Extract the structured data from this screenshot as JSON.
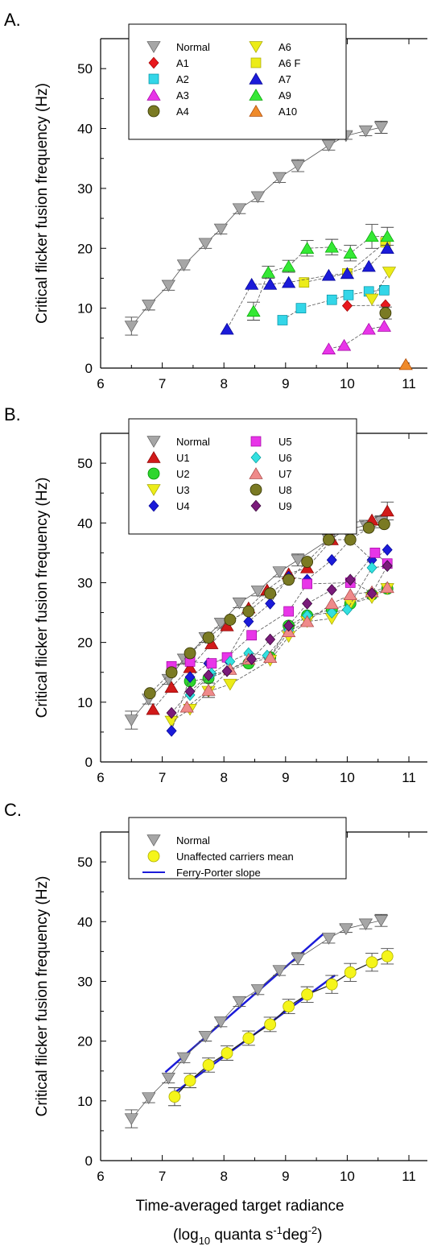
{
  "panel_labels": [
    "A.",
    "B.",
    "C."
  ],
  "chart_data": [
    {
      "type": "scatter",
      "panel": "A.",
      "ylabel": "Critical flicker fusion frequency (Hz)",
      "xlabel": "",
      "xlim": [
        6,
        11.3
      ],
      "ylim": [
        0,
        55
      ],
      "xticks": [
        6,
        7,
        8,
        9,
        10,
        11
      ],
      "yticks": [
        0,
        10,
        20,
        30,
        40,
        50
      ],
      "legend_position": "top-left",
      "series": [
        {
          "name": "Normal",
          "marker": "tri-down",
          "color": "#a6a6a6",
          "x": [
            6.5,
            6.78,
            7.1,
            7.35,
            7.7,
            7.95,
            8.25,
            8.55,
            8.9,
            9.2,
            9.7,
            9.98,
            10.3,
            10.55
          ],
          "y": [
            7,
            10.5,
            13.8,
            17.2,
            20.8,
            23.2,
            26.6,
            28.6,
            31.8,
            33.8,
            37.2,
            38.8,
            39.6,
            40.2
          ],
          "err": [
            1.5,
            0.8,
            0.8,
            0.8,
            0.8,
            0.8,
            0.8,
            0.8,
            0.8,
            1,
            0.8,
            0.6,
            0.8,
            1
          ]
        },
        {
          "name": "A1",
          "marker": "diamond",
          "color": "#e8181d",
          "x": [
            10,
            10.62
          ],
          "y": [
            10.4,
            10.5
          ],
          "err": [
            0,
            0
          ]
        },
        {
          "name": "A2",
          "marker": "square",
          "color": "#33d6e8",
          "x": [
            8.95,
            9.25,
            9.75,
            10.02,
            10.35,
            10.6
          ],
          "y": [
            8,
            10,
            11.4,
            12.2,
            12.8,
            13
          ],
          "err": [
            0,
            0,
            0,
            0,
            0,
            0
          ]
        },
        {
          "name": "A3",
          "marker": "tri-up",
          "color": "#e835e8",
          "x": [
            9.7,
            9.95,
            10.35,
            10.6
          ],
          "y": [
            3.2,
            3.8,
            6.5,
            7
          ],
          "err": [
            0,
            0,
            0,
            0
          ]
        },
        {
          "name": "A4",
          "marker": "circle",
          "color": "#7a7a23",
          "x": [
            10.62
          ],
          "y": [
            9.2
          ],
          "err": [
            1
          ]
        },
        {
          "name": "A6",
          "marker": "tri-down",
          "color": "#ecec18",
          "x": [
            10.4,
            10.68
          ],
          "y": [
            11.5,
            16
          ],
          "err": [
            0,
            0
          ]
        },
        {
          "name": "A6 F",
          "marker": "square",
          "color": "#ecec18",
          "x": [
            9.3,
            10,
            10.62
          ],
          "y": [
            14.3,
            15.8,
            21
          ],
          "err": [
            0,
            0,
            0
          ]
        },
        {
          "name": "A7",
          "marker": "tri-up",
          "color": "#1b1bd9",
          "x": [
            8.05,
            8.45,
            8.75,
            9.05,
            9.7,
            10,
            10.35,
            10.65
          ],
          "y": [
            6.5,
            14,
            14,
            14.3,
            15.5,
            15.8,
            17,
            20
          ],
          "err": [
            0,
            0,
            0,
            0,
            0,
            0,
            0,
            0
          ]
        },
        {
          "name": "A9",
          "marker": "tri-up",
          "color": "#35e835",
          "x": [
            8.48,
            8.72,
            9.05,
            9.35,
            9.75,
            10.05,
            10.4,
            10.65
          ],
          "y": [
            9.5,
            16,
            17,
            20,
            20.2,
            19.2,
            22,
            22
          ],
          "err": [
            1.5,
            1,
            1,
            1.3,
            1.3,
            1.3,
            2,
            1.5
          ]
        },
        {
          "name": "A10",
          "marker": "tri-up",
          "color": "#ef8a2a",
          "x": [
            10.95
          ],
          "y": [
            0.6
          ],
          "err": [
            0
          ]
        }
      ]
    },
    {
      "type": "scatter",
      "panel": "B.",
      "ylabel": "Critical flicker fusion frequency (Hz)",
      "xlabel": "",
      "xlim": [
        6,
        11.3
      ],
      "ylim": [
        0,
        55
      ],
      "xticks": [
        6,
        7,
        8,
        9,
        10,
        11
      ],
      "yticks": [
        0,
        10,
        20,
        30,
        40,
        50
      ],
      "legend_position": "top-left",
      "series": [
        {
          "name": "Normal",
          "marker": "tri-down",
          "color": "#a6a6a6",
          "x": [
            6.5,
            6.78,
            7.1,
            7.35,
            7.7,
            7.95,
            8.25,
            8.55,
            8.9,
            9.2,
            9.7,
            9.98,
            10.3,
            10.55
          ],
          "y": [
            7,
            10.5,
            13.8,
            17.2,
            20.8,
            23.2,
            26.6,
            28.6,
            31.8,
            33.8,
            37.2,
            38.8,
            39.6,
            40.2
          ],
          "err": [
            1.5,
            0.8,
            0.8,
            0.8,
            0.8,
            0.8,
            0.8,
            0.8,
            0.8,
            1,
            0.8,
            0.6,
            0.8,
            1
          ]
        },
        {
          "name": "U1",
          "marker": "tri-up",
          "color": "#d11a1a",
          "x": [
            6.85,
            7.15,
            7.45,
            7.8,
            8.05,
            8.4,
            8.7,
            9.05,
            9.35,
            9.75,
            10.05,
            10.4,
            10.65
          ],
          "y": [
            8.8,
            12.5,
            15.8,
            19.8,
            22.8,
            25.8,
            28.8,
            31.5,
            32.5,
            37.2,
            40,
            40.5,
            42
          ],
          "err": [
            0,
            0,
            0,
            0,
            0,
            0,
            0,
            0,
            0,
            0,
            0,
            0,
            1.5
          ]
        },
        {
          "name": "U2",
          "marker": "circle",
          "color": "#2ed62e",
          "x": [
            7.45,
            7.75,
            8.4,
            8.75,
            9.05,
            9.35,
            9.75,
            10.05,
            10.4,
            10.65
          ],
          "y": [
            13.5,
            14,
            16.5,
            17.5,
            22.8,
            24.5,
            25.5,
            26.5,
            28,
            29
          ],
          "err": [
            0,
            0,
            0,
            0,
            0,
            0,
            0,
            0,
            0,
            0
          ]
        },
        {
          "name": "U3",
          "marker": "tri-down",
          "color": "#ecec18",
          "x": [
            7.15,
            7.45,
            7.75,
            8.1,
            8.75,
            9.05,
            9.35,
            9.75,
            10.05,
            10.4,
            10.65
          ],
          "y": [
            6.8,
            8.8,
            11.8,
            13,
            17,
            21,
            23.5,
            24,
            26.5,
            27.5,
            29
          ],
          "err": [
            0,
            0,
            0,
            0,
            0,
            0,
            0,
            0,
            0,
            0,
            0
          ]
        },
        {
          "name": "U4",
          "marker": "diamond",
          "color": "#1b1bd9",
          "x": [
            7.15,
            7.45,
            7.75,
            8.05,
            8.4,
            8.75,
            9.05,
            9.35,
            9.75,
            10.05,
            10.4,
            10.65
          ],
          "y": [
            5.2,
            14.2,
            16.5,
            17.2,
            23.5,
            26.5,
            31,
            30.5,
            33.8,
            37.2,
            33.8,
            35.5
          ],
          "err": [
            0,
            0,
            0,
            0,
            0,
            0,
            0,
            0,
            0,
            0,
            0,
            0
          ]
        },
        {
          "name": "U5",
          "marker": "square",
          "color": "#e835e8",
          "x": [
            7.15,
            7.45,
            7.8,
            8.05,
            8.45,
            9.05,
            9.35,
            10.05,
            10.45,
            10.65
          ],
          "y": [
            16,
            16.8,
            16.5,
            17.5,
            21.2,
            25.2,
            29.8,
            30,
            35,
            33.2
          ],
          "err": [
            0,
            0,
            0,
            0,
            0,
            0,
            0,
            0,
            0,
            0
          ]
        },
        {
          "name": "U6",
          "marker": "diamond",
          "color": "#33e0e0",
          "x": [
            7.45,
            7.8,
            8.1,
            8.4,
            8.7,
            9.05,
            9.35,
            9.75,
            10,
            10.4,
            10.65
          ],
          "y": [
            11.2,
            14.8,
            16.8,
            18.2,
            17.8,
            22,
            24.5,
            25,
            25.5,
            32.5,
            32.8
          ],
          "err": [
            0,
            0,
            0,
            0,
            0,
            0,
            0,
            0,
            0,
            0,
            0
          ]
        },
        {
          "name": "U7",
          "marker": "tri-up",
          "color": "#ef8a8a",
          "x": [
            7.4,
            7.75,
            8.1,
            8.4,
            8.75,
            9.05,
            9.35,
            9.75,
            10.05,
            10.4,
            10.65
          ],
          "y": [
            9.2,
            12,
            15.5,
            17.2,
            17.5,
            21.8,
            23.5,
            26.5,
            28,
            28.5,
            29.2
          ],
          "err": [
            0,
            1.2,
            0,
            0,
            0,
            0,
            0,
            0,
            0,
            0,
            0
          ]
        },
        {
          "name": "U8",
          "marker": "circle",
          "color": "#7a7a23",
          "x": [
            6.8,
            7.15,
            7.45,
            7.75,
            8.1,
            8.4,
            8.75,
            9.05,
            9.35,
            9.7,
            10.05,
            10.35,
            10.6
          ],
          "y": [
            11.5,
            15,
            18.2,
            20.8,
            23.8,
            25.2,
            28.2,
            30.5,
            33.5,
            37.2,
            37.2,
            39.2,
            39.8
          ],
          "err": [
            0,
            0,
            0,
            0,
            0,
            0,
            0,
            0,
            0,
            0,
            0,
            0,
            0
          ]
        },
        {
          "name": "U9",
          "marker": "diamond",
          "color": "#7a1b7a",
          "x": [
            7.15,
            7.45,
            7.75,
            8.05,
            8.45,
            8.75,
            9.05,
            9.35,
            9.75,
            10.05,
            10.4,
            10.65
          ],
          "y": [
            8.2,
            11.8,
            14.5,
            15.2,
            17.2,
            20.5,
            22.8,
            26.5,
            28.8,
            30.5,
            28.2,
            32.8
          ],
          "err": [
            0,
            0,
            0,
            0,
            0,
            0,
            0,
            0,
            0,
            0,
            0,
            0
          ]
        }
      ]
    },
    {
      "type": "scatter",
      "panel": "C.",
      "ylabel": "Critical flicker fusion frequency (Hz)",
      "xlabel": "Time-averaged target radiance",
      "xlabel_line2_parts": [
        "(log",
        "10",
        " quanta s",
        "-1",
        "deg",
        "-2",
        ")"
      ],
      "xlim": [
        6,
        11.3
      ],
      "ylim": [
        0,
        55
      ],
      "xticks": [
        6,
        7,
        8,
        9,
        10,
        11
      ],
      "yticks": [
        0,
        10,
        20,
        30,
        40,
        50
      ],
      "legend_position": "top-left",
      "series": [
        {
          "name": "Normal",
          "marker": "tri-down",
          "color": "#a6a6a6",
          "x": [
            6.5,
            6.78,
            7.1,
            7.35,
            7.7,
            7.95,
            8.25,
            8.55,
            8.9,
            9.2,
            9.7,
            9.98,
            10.3,
            10.55
          ],
          "y": [
            7,
            10.5,
            13.8,
            17.2,
            20.8,
            23.2,
            26.6,
            28.6,
            31.8,
            33.8,
            37.2,
            38.8,
            39.6,
            40.2
          ],
          "err": [
            1.5,
            0.8,
            0.8,
            0.8,
            0.8,
            0.8,
            0.8,
            0.8,
            0.8,
            1,
            0.8,
            0.6,
            0.8,
            1
          ]
        },
        {
          "name": "Unaffected carriers mean",
          "marker": "circle",
          "color": "#f5f51a",
          "x": [
            7.2,
            7.45,
            7.75,
            8.05,
            8.4,
            8.75,
            9.05,
            9.35,
            9.75,
            10.05,
            10.4,
            10.65
          ],
          "y": [
            10.7,
            13.4,
            16,
            18,
            20.5,
            22.8,
            25.8,
            27.8,
            29.5,
            31.5,
            33.2,
            34.2
          ],
          "err": [
            1.5,
            1.2,
            1.2,
            1.2,
            1.2,
            1.2,
            1.2,
            1.3,
            1.5,
            1.5,
            1.5,
            1.3
          ]
        }
      ],
      "lines": [
        {
          "name": "Ferry-Porter slope",
          "color": "#1b1bd9",
          "segments": [
            [
              [
                7.05,
                14.8
              ],
              [
                9.62,
                38
              ]
            ],
            [
              [
                7.15,
                11
              ],
              [
                9.8,
                31
              ]
            ]
          ]
        }
      ]
    }
  ]
}
